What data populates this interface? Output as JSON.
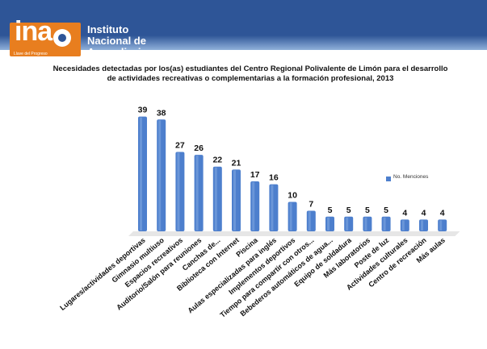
{
  "header": {
    "logo_text": "ina",
    "logo_tagline": "Llave del Progreso",
    "institution": "Instituto\nNacional de\nAprendizaje",
    "brand_colors": {
      "band": "#2e5597",
      "logo": "#e87e1f"
    }
  },
  "chart_data": {
    "type": "bar",
    "title": "Necesidades detectadas por los(as) estudiantes del Centro Regional Polivalente de Limón para el desarrollo de actividades recreativas o complementarias a la formación profesional, 2013",
    "categories": [
      "Lugares/actividades deportivas",
      "Gimnasio multiuso",
      "Espacios recreativos",
      "Auditorio/Salón para reuniones",
      "Canchas de...",
      "Biblioteca con Internet",
      "Piscina",
      "Aulas especializadas para inglés",
      "Implementos deportivos",
      "Tiempo para compartir con otros...",
      "Bebederos automáticos de agua...",
      "Equipo de soldadura",
      "Más laboratorios",
      "Poste de luz",
      "Actividades culturales",
      "Centro de recreación",
      "Más aulas"
    ],
    "series": [
      {
        "name": "No. Menciones",
        "values": [
          39,
          38,
          27,
          26,
          22,
          21,
          17,
          16,
          10,
          7,
          5,
          5,
          5,
          5,
          4,
          4,
          4
        ]
      }
    ],
    "ylim": [
      0,
      40
    ],
    "grid": false,
    "legend_position": "right",
    "bar_color": "#4d7fcd"
  }
}
